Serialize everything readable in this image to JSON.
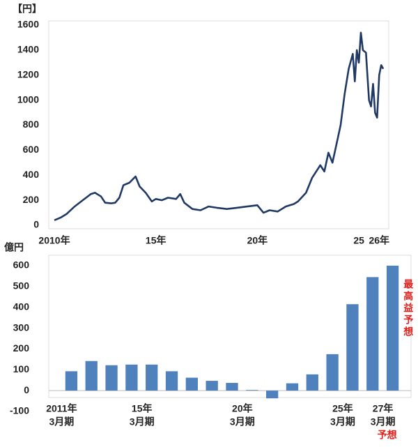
{
  "chart_data": [
    {
      "type": "line",
      "y_unit_label": "【円】",
      "x": [
        2010.0,
        2010.3,
        2010.6,
        2011.0,
        2011.4,
        2011.8,
        2012.0,
        2012.3,
        2012.5,
        2012.8,
        2013.0,
        2013.2,
        2013.4,
        2013.7,
        2014.0,
        2014.2,
        2014.5,
        2014.8,
        2015.0,
        2015.3,
        2015.6,
        2016.0,
        2016.2,
        2016.4,
        2016.8,
        2017.2,
        2017.6,
        2018.0,
        2018.5,
        2019.0,
        2019.5,
        2020.0,
        2020.3,
        2020.6,
        2021.0,
        2021.4,
        2021.8,
        2022.0,
        2022.4,
        2022.7,
        2022.9,
        2023.1,
        2023.3,
        2023.5,
        2023.7,
        2023.9,
        2024.1,
        2024.3,
        2024.5,
        2024.7,
        2024.8,
        2024.9,
        2025.0,
        2025.1,
        2025.2,
        2025.35,
        2025.5,
        2025.6,
        2025.7,
        2025.8,
        2025.9,
        2026.0,
        2026.1,
        2026.2
      ],
      "series": [
        {
          "color": "#1f3864",
          "values": [
            40,
            60,
            90,
            150,
            200,
            250,
            260,
            230,
            180,
            175,
            180,
            220,
            320,
            340,
            390,
            310,
            260,
            190,
            210,
            200,
            220,
            210,
            250,
            180,
            130,
            120,
            150,
            140,
            130,
            140,
            150,
            160,
            100,
            120,
            110,
            150,
            170,
            190,
            260,
            380,
            430,
            480,
            430,
            580,
            500,
            650,
            800,
            1050,
            1250,
            1370,
            1150,
            1400,
            1300,
            1540,
            1400,
            1380,
            1000,
            950,
            1130,
            900,
            860,
            1200,
            1280,
            1250
          ]
        }
      ],
      "xlim": [
        2010,
        2026.3
      ],
      "xticks": [
        {
          "value": 2010,
          "label": "2010年"
        },
        {
          "value": 2015,
          "label": "15年"
        },
        {
          "value": 2020,
          "label": "20年"
        },
        {
          "value": 2025,
          "label": "25"
        },
        {
          "value": 2026,
          "label": "26年"
        }
      ],
      "ylim": [
        0,
        1600
      ],
      "yticks": [
        0,
        200,
        400,
        600,
        800,
        1000,
        1200,
        1400,
        1600
      ]
    },
    {
      "type": "bar",
      "y_unit_label": "億円",
      "color": "#4f81bd",
      "categories": [
        "2011年",
        null,
        null,
        null,
        "15年",
        null,
        null,
        null,
        null,
        "20年",
        null,
        null,
        null,
        null,
        "25年",
        null,
        "27年"
      ],
      "category_sublabels": [
        "3月期",
        null,
        null,
        null,
        "3月期",
        null,
        null,
        null,
        null,
        "3月期",
        null,
        null,
        null,
        null,
        "3月期",
        null,
        "3月期"
      ],
      "forecast_label": "予想",
      "annotation": "最高益予想",
      "values": [
        93,
        142,
        122,
        125,
        125,
        93,
        62,
        47,
        37,
        3,
        -37,
        35,
        78,
        175,
        415,
        545,
        600
      ],
      "ylim": [
        -100,
        630
      ],
      "yticks": [
        -100,
        0,
        100,
        200,
        300,
        400,
        500,
        600
      ]
    }
  ]
}
